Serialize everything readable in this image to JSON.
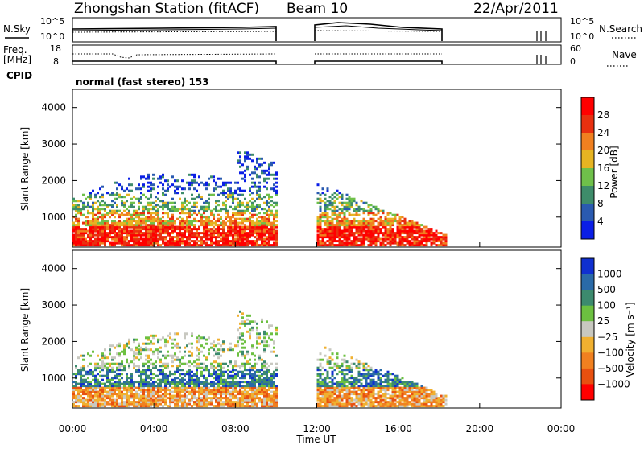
{
  "header": {
    "station": "Zhongshan Station (fitACF)",
    "beam": "Beam 10",
    "date": "22/Apr/2011"
  },
  "top_panels": {
    "nsky_label": "N.Sky",
    "nsky_ticks": [
      "10^5",
      "10^0"
    ],
    "nsearch_label": "N.Search",
    "nsearch_ticks": [
      "10^5",
      "10^0"
    ],
    "freq_label_1": "Freq.",
    "freq_label_2": "[MHz]",
    "freq_ticks": [
      "18",
      "8"
    ],
    "nave_label": "Nave",
    "nave_ticks": [
      "60",
      "0"
    ],
    "cpid_label": "CPID",
    "cpid_value": "normal (fast stereo) 153"
  },
  "chart_data": [
    {
      "type": "heatmap",
      "name": "power-panel",
      "ylabel": "Slant Range [km]",
      "yticks": [
        1000,
        2000,
        3000,
        4000
      ],
      "ylim": [
        180,
        4500
      ],
      "xlabel": "Time UT",
      "xticks": [
        "00:00",
        "04:00",
        "08:00",
        "12:00",
        "16:00",
        "20:00",
        "00:00"
      ],
      "xlim_hours": [
        0,
        24
      ],
      "colorbar": {
        "label": "Power [dB]",
        "ticks": [
          "4",
          "8",
          "12",
          "16",
          "20",
          "24",
          "28"
        ],
        "colors": [
          "#0a1ee6",
          "#2a5ab0",
          "#3e8c6a",
          "#6fc04a",
          "#e6b422",
          "#f08020",
          "#e83010",
          "#ff0000"
        ]
      },
      "data_windows_hours": [
        [
          0.0,
          10.0
        ],
        [
          12.0,
          18.3
        ]
      ]
    },
    {
      "type": "heatmap",
      "name": "velocity-panel",
      "ylabel": "Slant Range [km]",
      "yticks": [
        1000,
        2000,
        3000,
        4000
      ],
      "ylim": [
        180,
        4500
      ],
      "xlabel": "Time UT",
      "xticks": [
        "00:00",
        "04:00",
        "08:00",
        "12:00",
        "16:00",
        "20:00",
        "00:00"
      ],
      "xlim_hours": [
        0,
        24
      ],
      "colorbar": {
        "label": "Velocity [m s⁻¹]",
        "ticks": [
          "1000",
          "500",
          "100",
          "25",
          "−25",
          "−100",
          "−500",
          "−1000"
        ],
        "colors": [
          "#1030d0",
          "#2a6aa8",
          "#3c8a6e",
          "#6cc040",
          "#c8c8c0",
          "#f0b030",
          "#f08020",
          "#e85010",
          "#ff0000"
        ]
      },
      "data_windows_hours": [
        [
          0.0,
          10.0
        ],
        [
          12.0,
          18.3
        ]
      ]
    }
  ]
}
